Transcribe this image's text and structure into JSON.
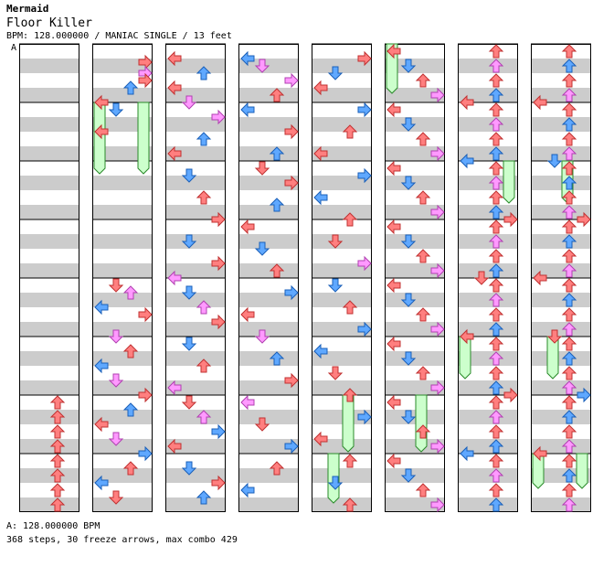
{
  "header": {
    "artist": "Mermaid",
    "title": "Floor Killer",
    "info": "BPM: 128.000000 / MANIAC SINGLE / 13 feet"
  },
  "bpm_marker": "A",
  "footer": {
    "bpm_line": "A: 128.000000 BPM",
    "stats_line": "368 steps, 30 freeze arrows, max combo 429"
  },
  "colors": {
    "stripe_gray": "#cccccc",
    "quarter_red": "#ff7f7f",
    "eighth_blue": "#5fa8ff",
    "sixteenth_pink": "#ff99ff",
    "freeze_green": "#ccffcc"
  },
  "chart_data": {
    "type": "step_chart",
    "columns_count": 8,
    "measures_per_column": 8,
    "lanes": [
      "left",
      "down",
      "up",
      "right"
    ],
    "freeze_arrows": 30,
    "steps": 368,
    "max_combo": 429
  }
}
